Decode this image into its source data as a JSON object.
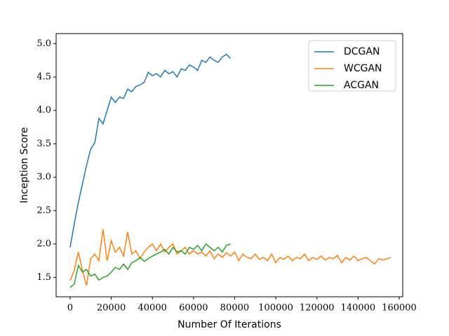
{
  "chart_data": {
    "type": "line",
    "xlabel": "Number Of Iterations",
    "ylabel": "Inception Score",
    "x": [
      0,
      2000,
      4000,
      6000,
      8000,
      10000,
      12000,
      14000,
      16000,
      18000,
      20000,
      22000,
      24000,
      26000,
      28000,
      30000,
      32000,
      34000,
      36000,
      38000,
      40000,
      42000,
      44000,
      46000,
      48000,
      50000,
      52000,
      54000,
      56000,
      58000,
      60000,
      62000,
      64000,
      66000,
      68000,
      70000,
      72000,
      74000,
      76000,
      78000,
      80000,
      82000,
      84000,
      86000,
      88000,
      90000,
      92000,
      94000,
      96000,
      98000,
      100000,
      102000,
      104000,
      106000,
      108000,
      110000,
      112000,
      114000,
      116000,
      118000,
      120000,
      122000,
      124000,
      126000,
      128000,
      130000,
      132000,
      134000,
      136000,
      138000,
      140000,
      142000,
      144000,
      146000,
      148000,
      150000,
      152000,
      154000,
      156000
    ],
    "series": [
      {
        "name": "DCGAN",
        "color": "#1f77b4",
        "values": [
          1.95,
          2.3,
          2.62,
          2.9,
          3.18,
          3.42,
          3.52,
          3.88,
          3.8,
          4.0,
          4.2,
          4.12,
          4.2,
          4.18,
          4.32,
          4.28,
          4.36,
          4.38,
          4.42,
          4.57,
          4.52,
          4.55,
          4.5,
          4.6,
          4.55,
          4.58,
          4.5,
          4.62,
          4.6,
          4.68,
          4.65,
          4.6,
          4.75,
          4.72,
          4.8,
          4.75,
          4.72,
          4.8,
          4.84,
          4.78,
          null,
          null,
          null,
          null,
          null,
          null,
          null,
          null,
          null,
          null,
          null,
          null,
          null,
          null,
          null,
          null,
          null,
          null,
          null,
          null,
          null,
          null,
          null,
          null,
          null,
          null,
          null,
          null,
          null,
          null,
          null,
          null,
          null,
          null,
          null,
          null,
          null,
          null,
          null
        ]
      },
      {
        "name": "WCGAN",
        "color": "#ff7f0e",
        "values": [
          1.45,
          1.6,
          1.88,
          1.6,
          1.38,
          1.78,
          1.85,
          1.75,
          2.22,
          1.75,
          2.05,
          1.88,
          1.95,
          1.82,
          2.18,
          1.85,
          1.9,
          1.78,
          1.88,
          1.95,
          2.0,
          1.9,
          2.0,
          1.88,
          1.95,
          2.0,
          1.85,
          1.9,
          1.95,
          1.85,
          1.9,
          1.85,
          1.88,
          1.82,
          1.9,
          1.78,
          1.85,
          1.8,
          1.87,
          1.82,
          1.88,
          1.75,
          1.85,
          1.8,
          1.78,
          1.85,
          1.77,
          1.8,
          1.75,
          1.85,
          1.72,
          1.8,
          1.77,
          1.82,
          1.75,
          1.8,
          1.78,
          1.85,
          1.75,
          1.8,
          1.77,
          1.82,
          1.76,
          1.8,
          1.78,
          1.83,
          1.72,
          1.8,
          1.76,
          1.82,
          1.75,
          1.78,
          1.8,
          1.75,
          1.7,
          1.78,
          1.76,
          1.78,
          1.8
        ]
      },
      {
        "name": "ACGAN",
        "color": "#2ca02c",
        "values": [
          1.35,
          1.4,
          1.68,
          1.58,
          1.62,
          1.52,
          1.55,
          1.46,
          1.5,
          1.52,
          1.58,
          1.65,
          1.62,
          1.7,
          1.62,
          1.72,
          1.75,
          1.8,
          1.74,
          1.78,
          1.82,
          1.85,
          1.88,
          1.92,
          1.85,
          1.95,
          1.88,
          1.9,
          1.85,
          1.95,
          1.92,
          1.98,
          1.9,
          2.0,
          1.95,
          1.9,
          1.95,
          1.88,
          1.98,
          2.0,
          null,
          null,
          null,
          null,
          null,
          null,
          null,
          null,
          null,
          null,
          null,
          null,
          null,
          null,
          null,
          null,
          null,
          null,
          null,
          null,
          null,
          null,
          null,
          null,
          null,
          null,
          null,
          null,
          null,
          null,
          null,
          null,
          null,
          null,
          null,
          null,
          null,
          null,
          null
        ]
      }
    ],
    "xlim": [
      -6800,
      161700
    ],
    "ylim": [
      1.21,
      5.15
    ],
    "xticks": [
      0,
      20000,
      40000,
      60000,
      80000,
      100000,
      120000,
      140000,
      160000
    ],
    "yticks": [
      1.5,
      {
        "value": 2,
        "label": "2.0"
      },
      2.5,
      {
        "value": 3,
        "label": "3.0"
      },
      3.5,
      {
        "value": 4,
        "label": "4.0"
      },
      4.5,
      {
        "value": 5,
        "label": "5.0"
      }
    ],
    "legend": "upper right",
    "grid": false
  }
}
